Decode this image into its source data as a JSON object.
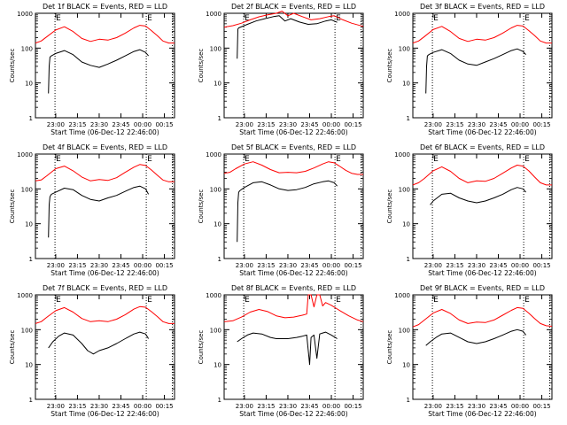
{
  "figure": {
    "xlabel": "Start Time (06-Dec-12 22:46:00)",
    "ylabel": "Counts/sec",
    "x_ticks": [
      "23:00",
      "23:15",
      "23:30",
      "23:45",
      "00:00",
      "00:15"
    ],
    "y_ticks": [
      "1",
      "10",
      "100",
      "1000"
    ],
    "marker_label": "E",
    "colors": {
      "events": "#000000",
      "lld": "#ff0000",
      "axis": "#000000"
    }
  },
  "chart_data": [
    {
      "type": "line",
      "title": "Det 1f BLACK = Events, RED = LLD",
      "x_range_min": [
        0,
        96
      ],
      "y_scale": "log",
      "ylim": [
        1,
        1000
      ],
      "marker_lines_min": [
        13.5,
        76.5,
        94.5
      ],
      "series": [
        {
          "color": "#ff0000",
          "x": [
            0,
            4,
            8,
            14,
            20,
            26,
            32,
            38,
            44,
            50,
            56,
            62,
            68,
            72,
            76,
            80,
            84,
            88,
            92,
            96
          ],
          "values": [
            140,
            160,
            215,
            330,
            410,
            300,
            190,
            155,
            180,
            170,
            200,
            270,
            380,
            450,
            430,
            320,
            230,
            160,
            140,
            140
          ]
        },
        {
          "color": "#000000",
          "x": [
            9,
            9.5,
            10,
            11,
            14,
            20,
            26,
            32,
            38,
            44,
            50,
            56,
            62,
            68,
            72,
            76,
            78
          ],
          "values": [
            5,
            30,
            55,
            60,
            70,
            85,
            65,
            40,
            32,
            28,
            35,
            45,
            60,
            80,
            90,
            75,
            60
          ]
        }
      ]
    },
    {
      "type": "line",
      "title": "Det 2f BLACK = Events, RED = LLD",
      "x_range_min": [
        0,
        96
      ],
      "y_scale": "log",
      "ylim": [
        1,
        1000
      ],
      "marker_lines_min": [
        13.5,
        76.5,
        94.5
      ],
      "series": [
        {
          "color": "#ff0000",
          "x": [
            0,
            6,
            12,
            18,
            24,
            30,
            36,
            40,
            44,
            48,
            54,
            60,
            66,
            72,
            76,
            82,
            88,
            96
          ],
          "values": [
            400,
            440,
            520,
            650,
            790,
            900,
            1000,
            1150,
            850,
            1000,
            800,
            650,
            700,
            800,
            850,
            650,
            520,
            420
          ]
        },
        {
          "color": "#000000",
          "x": [
            9,
            9.5,
            10,
            16,
            22,
            28,
            34,
            38,
            42,
            46,
            52,
            58,
            64,
            70,
            74,
            78
          ],
          "values": [
            50,
            350,
            380,
            480,
            600,
            700,
            800,
            850,
            600,
            700,
            560,
            480,
            500,
            600,
            650,
            550
          ]
        }
      ]
    },
    {
      "type": "line",
      "title": "Det 3f BLACK = Events, RED = LLD",
      "x_range_min": [
        0,
        96
      ],
      "y_scale": "log",
      "ylim": [
        1,
        1000
      ],
      "marker_lines_min": [
        13.5,
        76.5,
        94.5
      ],
      "series": [
        {
          "color": "#ff0000",
          "x": [
            0,
            4,
            8,
            14,
            20,
            26,
            32,
            38,
            44,
            50,
            56,
            62,
            68,
            72,
            76,
            80,
            84,
            88,
            92,
            96
          ],
          "values": [
            140,
            160,
            215,
            340,
            420,
            300,
            190,
            155,
            180,
            170,
            200,
            270,
            380,
            450,
            430,
            320,
            230,
            160,
            140,
            140
          ]
        },
        {
          "color": "#000000",
          "x": [
            9,
            9.5,
            10,
            11,
            14,
            20,
            26,
            32,
            38,
            44,
            50,
            56,
            62,
            68,
            72,
            76,
            78
          ],
          "values": [
            5,
            30,
            60,
            65,
            75,
            90,
            70,
            45,
            35,
            32,
            40,
            50,
            65,
            85,
            95,
            80,
            65
          ]
        }
      ]
    },
    {
      "type": "line",
      "title": "Det 4f BLACK = Events, RED = LLD",
      "x_range_min": [
        0,
        96
      ],
      "y_scale": "log",
      "ylim": [
        1,
        1000
      ],
      "marker_lines_min": [
        13.5,
        76.5,
        94.5
      ],
      "series": [
        {
          "color": "#ff0000",
          "x": [
            0,
            4,
            8,
            14,
            20,
            26,
            32,
            38,
            44,
            50,
            56,
            62,
            68,
            72,
            76,
            80,
            84,
            88,
            92,
            96
          ],
          "values": [
            170,
            180,
            240,
            380,
            450,
            330,
            220,
            170,
            185,
            175,
            210,
            300,
            420,
            500,
            470,
            350,
            250,
            180,
            160,
            160
          ]
        },
        {
          "color": "#000000",
          "x": [
            9,
            9.5,
            10,
            11,
            14,
            20,
            26,
            32,
            38,
            44,
            50,
            56,
            62,
            68,
            72,
            76,
            78
          ],
          "values": [
            4,
            35,
            60,
            70,
            80,
            105,
            95,
            65,
            50,
            45,
            55,
            65,
            85,
            110,
            120,
            100,
            70
          ]
        }
      ]
    },
    {
      "type": "line",
      "title": "Det 5f BLACK = Events, RED = LLD",
      "x_range_min": [
        0,
        96
      ],
      "y_scale": "log",
      "ylim": [
        1,
        1000
      ],
      "marker_lines_min": [
        13.5,
        76.5,
        94.5
      ],
      "series": [
        {
          "color": "#ff0000",
          "x": [
            0,
            4,
            8,
            14,
            20,
            26,
            32,
            38,
            44,
            50,
            56,
            62,
            68,
            72,
            76,
            80,
            84,
            88,
            92,
            96
          ],
          "values": [
            280,
            300,
            380,
            520,
            600,
            480,
            360,
            290,
            300,
            290,
            320,
            400,
            520,
            600,
            560,
            440,
            340,
            280,
            260,
            260
          ]
        },
        {
          "color": "#000000",
          "x": [
            9,
            9.5,
            10,
            11,
            14,
            20,
            26,
            32,
            38,
            44,
            50,
            56,
            62,
            68,
            72,
            76,
            78
          ],
          "values": [
            3,
            40,
            80,
            90,
            110,
            150,
            160,
            130,
            100,
            90,
            95,
            110,
            140,
            160,
            170,
            150,
            120
          ]
        }
      ]
    },
    {
      "type": "line",
      "title": "Det 6f BLACK = Events, RED = LLD",
      "x_range_min": [
        0,
        96
      ],
      "y_scale": "log",
      "ylim": [
        1,
        1000
      ],
      "marker_lines_min": [
        13.5,
        76.5,
        94.5
      ],
      "series": [
        {
          "color": "#ff0000",
          "x": [
            0,
            4,
            8,
            14,
            20,
            26,
            32,
            38,
            44,
            50,
            56,
            62,
            68,
            72,
            76,
            80,
            84,
            88,
            92,
            96
          ],
          "values": [
            130,
            150,
            200,
            330,
            430,
            320,
            200,
            150,
            170,
            165,
            200,
            280,
            400,
            480,
            450,
            330,
            220,
            150,
            130,
            130
          ]
        },
        {
          "color": "#000000",
          "x": [
            12,
            14,
            20,
            26,
            32,
            38,
            44,
            50,
            56,
            62,
            68,
            72,
            76,
            78
          ],
          "values": [
            35,
            45,
            70,
            75,
            55,
            45,
            40,
            45,
            55,
            70,
            95,
            110,
            100,
            80
          ]
        }
      ]
    },
    {
      "type": "line",
      "title": "Det 7f BLACK = Events, RED = LLD",
      "x_range_min": [
        0,
        96
      ],
      "y_scale": "log",
      "ylim": [
        1,
        1000
      ],
      "marker_lines_min": [
        13.5,
        76.5,
        94.5
      ],
      "series": [
        {
          "color": "#ff0000",
          "x": [
            0,
            4,
            8,
            14,
            20,
            26,
            32,
            38,
            44,
            50,
            56,
            62,
            68,
            72,
            76,
            80,
            84,
            88,
            92,
            96
          ],
          "values": [
            150,
            170,
            230,
            350,
            430,
            320,
            210,
            170,
            180,
            170,
            200,
            270,
            390,
            460,
            440,
            330,
            240,
            170,
            150,
            150
          ]
        },
        {
          "color": "#000000",
          "x": [
            9,
            12,
            16,
            20,
            26,
            32,
            36,
            40,
            44,
            50,
            56,
            62,
            68,
            72,
            76,
            78
          ],
          "values": [
            30,
            45,
            65,
            80,
            70,
            40,
            25,
            20,
            25,
            30,
            40,
            55,
            75,
            85,
            75,
            55
          ]
        }
      ]
    },
    {
      "type": "line",
      "title": "Det 8f BLACK = Events, RED = LLD",
      "x_range_min": [
        0,
        96
      ],
      "y_scale": "log",
      "ylim": [
        1,
        1000
      ],
      "marker_lines_min": [
        13.5,
        76.5,
        94.5
      ],
      "series": [
        {
          "color": "#ff0000",
          "x": [
            0,
            6,
            12,
            18,
            24,
            30,
            36,
            42,
            48,
            54,
            57,
            58,
            60,
            62,
            64,
            66,
            68,
            70,
            74,
            80,
            86,
            92,
            96
          ],
          "values": [
            170,
            180,
            230,
            320,
            380,
            330,
            250,
            220,
            230,
            260,
            280,
            1000,
            1000,
            450,
            1000,
            1000,
            480,
            600,
            500,
            350,
            250,
            190,
            170
          ]
        },
        {
          "color": "#000000",
          "x": [
            9,
            12,
            16,
            20,
            26,
            32,
            36,
            40,
            44,
            50,
            54,
            57,
            59,
            60,
            62,
            64,
            66,
            68,
            70,
            74,
            78
          ],
          "values": [
            45,
            55,
            70,
            80,
            75,
            60,
            55,
            55,
            55,
            60,
            65,
            70,
            10,
            60,
            70,
            15,
            75,
            80,
            85,
            70,
            55
          ]
        }
      ]
    },
    {
      "type": "line",
      "title": "Det 9f BLACK = Events, RED = LLD",
      "x_range_min": [
        0,
        96
      ],
      "y_scale": "log",
      "ylim": [
        1,
        1000
      ],
      "marker_lines_min": [
        13.5,
        76.5,
        94.5
      ],
      "series": [
        {
          "color": "#ff0000",
          "x": [
            0,
            4,
            8,
            14,
            20,
            26,
            32,
            38,
            44,
            50,
            56,
            62,
            68,
            72,
            76,
            80,
            84,
            88,
            92,
            96
          ],
          "values": [
            120,
            140,
            190,
            300,
            380,
            290,
            190,
            150,
            165,
            160,
            190,
            260,
            360,
            430,
            410,
            300,
            210,
            150,
            130,
            125
          ]
        },
        {
          "color": "#000000",
          "x": [
            9,
            12,
            16,
            20,
            26,
            32,
            38,
            44,
            50,
            56,
            62,
            68,
            72,
            76,
            78
          ],
          "values": [
            35,
            45,
            60,
            75,
            80,
            60,
            45,
            40,
            45,
            55,
            70,
            90,
            100,
            90,
            70
          ]
        }
      ]
    }
  ]
}
